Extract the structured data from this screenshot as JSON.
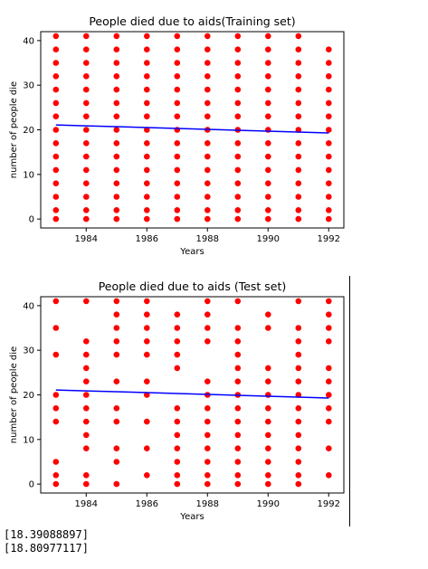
{
  "chart_data": [
    {
      "type": "scatter",
      "title": "People died due to aids(Training set)",
      "xlabel": "Years",
      "ylabel": "number of people die",
      "xlim": [
        1982.5,
        1992.5
      ],
      "ylim": [
        -2,
        42
      ],
      "xticks": [
        1984,
        1986,
        1988,
        1990,
        1992
      ],
      "yticks": [
        0,
        10,
        20,
        30,
        40
      ],
      "grid": false,
      "scatter_color": "#ff0000",
      "line_color": "#0000ff",
      "series": [
        {
          "points": [
            [
              1983,
              0
            ],
            [
              1983,
              2
            ],
            [
              1983,
              5
            ],
            [
              1983,
              8
            ],
            [
              1983,
              11
            ],
            [
              1983,
              14
            ],
            [
              1983,
              17
            ],
            [
              1983,
              20
            ],
            [
              1983,
              23
            ],
            [
              1983,
              26
            ],
            [
              1983,
              29
            ],
            [
              1983,
              32
            ],
            [
              1983,
              35
            ],
            [
              1983,
              38
            ],
            [
              1983,
              41
            ],
            [
              1984,
              0
            ],
            [
              1984,
              2
            ],
            [
              1984,
              5
            ],
            [
              1984,
              8
            ],
            [
              1984,
              11
            ],
            [
              1984,
              14
            ],
            [
              1984,
              17
            ],
            [
              1984,
              20
            ],
            [
              1984,
              23
            ],
            [
              1984,
              26
            ],
            [
              1984,
              29
            ],
            [
              1984,
              32
            ],
            [
              1984,
              35
            ],
            [
              1984,
              38
            ],
            [
              1984,
              41
            ],
            [
              1985,
              0
            ],
            [
              1985,
              2
            ],
            [
              1985,
              5
            ],
            [
              1985,
              8
            ],
            [
              1985,
              11
            ],
            [
              1985,
              14
            ],
            [
              1985,
              17
            ],
            [
              1985,
              20
            ],
            [
              1985,
              23
            ],
            [
              1985,
              26
            ],
            [
              1985,
              29
            ],
            [
              1985,
              32
            ],
            [
              1985,
              35
            ],
            [
              1985,
              38
            ],
            [
              1985,
              41
            ],
            [
              1986,
              0
            ],
            [
              1986,
              2
            ],
            [
              1986,
              5
            ],
            [
              1986,
              8
            ],
            [
              1986,
              11
            ],
            [
              1986,
              14
            ],
            [
              1986,
              17
            ],
            [
              1986,
              20
            ],
            [
              1986,
              23
            ],
            [
              1986,
              26
            ],
            [
              1986,
              29
            ],
            [
              1986,
              32
            ],
            [
              1986,
              35
            ],
            [
              1986,
              38
            ],
            [
              1986,
              41
            ],
            [
              1987,
              0
            ],
            [
              1987,
              2
            ],
            [
              1987,
              5
            ],
            [
              1987,
              8
            ],
            [
              1987,
              11
            ],
            [
              1987,
              14
            ],
            [
              1987,
              17
            ],
            [
              1987,
              20
            ],
            [
              1987,
              23
            ],
            [
              1987,
              26
            ],
            [
              1987,
              29
            ],
            [
              1987,
              32
            ],
            [
              1987,
              35
            ],
            [
              1987,
              38
            ],
            [
              1987,
              41
            ],
            [
              1988,
              0
            ],
            [
              1988,
              2
            ],
            [
              1988,
              5
            ],
            [
              1988,
              8
            ],
            [
              1988,
              11
            ],
            [
              1988,
              14
            ],
            [
              1988,
              17
            ],
            [
              1988,
              20
            ],
            [
              1988,
              23
            ],
            [
              1988,
              26
            ],
            [
              1988,
              29
            ],
            [
              1988,
              32
            ],
            [
              1988,
              35
            ],
            [
              1988,
              38
            ],
            [
              1988,
              41
            ],
            [
              1989,
              0
            ],
            [
              1989,
              2
            ],
            [
              1989,
              5
            ],
            [
              1989,
              8
            ],
            [
              1989,
              11
            ],
            [
              1989,
              14
            ],
            [
              1989,
              17
            ],
            [
              1989,
              20
            ],
            [
              1989,
              23
            ],
            [
              1989,
              26
            ],
            [
              1989,
              29
            ],
            [
              1989,
              32
            ],
            [
              1989,
              35
            ],
            [
              1989,
              38
            ],
            [
              1989,
              41
            ],
            [
              1990,
              0
            ],
            [
              1990,
              2
            ],
            [
              1990,
              5
            ],
            [
              1990,
              8
            ],
            [
              1990,
              11
            ],
            [
              1990,
              14
            ],
            [
              1990,
              17
            ],
            [
              1990,
              20
            ],
            [
              1990,
              23
            ],
            [
              1990,
              26
            ],
            [
              1990,
              29
            ],
            [
              1990,
              32
            ],
            [
              1990,
              35
            ],
            [
              1990,
              38
            ],
            [
              1990,
              41
            ],
            [
              1991,
              0
            ],
            [
              1991,
              2
            ],
            [
              1991,
              5
            ],
            [
              1991,
              8
            ],
            [
              1991,
              11
            ],
            [
              1991,
              14
            ],
            [
              1991,
              17
            ],
            [
              1991,
              20
            ],
            [
              1991,
              23
            ],
            [
              1991,
              26
            ],
            [
              1991,
              29
            ],
            [
              1991,
              32
            ],
            [
              1991,
              35
            ],
            [
              1991,
              38
            ],
            [
              1991,
              41
            ],
            [
              1992,
              0
            ],
            [
              1992,
              2
            ],
            [
              1992,
              5
            ],
            [
              1992,
              8
            ],
            [
              1992,
              11
            ],
            [
              1992,
              14
            ],
            [
              1992,
              17
            ],
            [
              1992,
              20
            ],
            [
              1992,
              23
            ],
            [
              1992,
              26
            ],
            [
              1992,
              29
            ],
            [
              1992,
              32
            ],
            [
              1992,
              35
            ],
            [
              1992,
              38
            ]
          ]
        },
        {
          "type": "line",
          "points": [
            [
              1983,
              21.1
            ],
            [
              1984,
              20.9
            ],
            [
              1985,
              20.7
            ],
            [
              1992,
              19.3
            ]
          ]
        }
      ]
    },
    {
      "type": "scatter",
      "title": "People died due to aids (Test set)",
      "xlabel": "Years",
      "ylabel": "number of people die",
      "xlim": [
        1982.5,
        1992.5
      ],
      "ylim": [
        -2,
        42
      ],
      "xticks": [
        1984,
        1986,
        1988,
        1990,
        1992
      ],
      "yticks": [
        0,
        10,
        20,
        30,
        40
      ],
      "grid": false,
      "scatter_color": "#ff0000",
      "line_color": "#0000ff",
      "series": [
        {
          "points": [
            [
              1983,
              0
            ],
            [
              1983,
              2
            ],
            [
              1983,
              5
            ],
            [
              1983,
              14
            ],
            [
              1983,
              17
            ],
            [
              1983,
              20
            ],
            [
              1983,
              29
            ],
            [
              1983,
              35
            ],
            [
              1983,
              41
            ],
            [
              1984,
              0
            ],
            [
              1984,
              2
            ],
            [
              1984,
              8
            ],
            [
              1984,
              11
            ],
            [
              1984,
              14
            ],
            [
              1984,
              17
            ],
            [
              1984,
              20
            ],
            [
              1984,
              23
            ],
            [
              1984,
              26
            ],
            [
              1984,
              29
            ],
            [
              1984,
              32
            ],
            [
              1984,
              41
            ],
            [
              1985,
              0
            ],
            [
              1985,
              5
            ],
            [
              1985,
              8
            ],
            [
              1985,
              14
            ],
            [
              1985,
              17
            ],
            [
              1985,
              23
            ],
            [
              1985,
              29
            ],
            [
              1985,
              32
            ],
            [
              1985,
              35
            ],
            [
              1985,
              38
            ],
            [
              1985,
              41
            ],
            [
              1986,
              2
            ],
            [
              1986,
              8
            ],
            [
              1986,
              14
            ],
            [
              1986,
              20
            ],
            [
              1986,
              23
            ],
            [
              1986,
              29
            ],
            [
              1986,
              32
            ],
            [
              1986,
              35
            ],
            [
              1986,
              38
            ],
            [
              1986,
              41
            ],
            [
              1987,
              0
            ],
            [
              1987,
              2
            ],
            [
              1987,
              5
            ],
            [
              1987,
              8
            ],
            [
              1987,
              11
            ],
            [
              1987,
              14
            ],
            [
              1987,
              17
            ],
            [
              1987,
              26
            ],
            [
              1987,
              29
            ],
            [
              1987,
              32
            ],
            [
              1987,
              35
            ],
            [
              1987,
              38
            ],
            [
              1988,
              0
            ],
            [
              1988,
              2
            ],
            [
              1988,
              5
            ],
            [
              1988,
              8
            ],
            [
              1988,
              11
            ],
            [
              1988,
              14
            ],
            [
              1988,
              17
            ],
            [
              1988,
              20
            ],
            [
              1988,
              23
            ],
            [
              1988,
              32
            ],
            [
              1988,
              35
            ],
            [
              1988,
              38
            ],
            [
              1988,
              41
            ],
            [
              1989,
              0
            ],
            [
              1989,
              2
            ],
            [
              1989,
              5
            ],
            [
              1989,
              8
            ],
            [
              1989,
              11
            ],
            [
              1989,
              14
            ],
            [
              1989,
              17
            ],
            [
              1989,
              20
            ],
            [
              1989,
              23
            ],
            [
              1989,
              26
            ],
            [
              1989,
              29
            ],
            [
              1989,
              32
            ],
            [
              1989,
              35
            ],
            [
              1989,
              41
            ],
            [
              1990,
              0
            ],
            [
              1990,
              2
            ],
            [
              1990,
              5
            ],
            [
              1990,
              8
            ],
            [
              1990,
              11
            ],
            [
              1990,
              14
            ],
            [
              1990,
              17
            ],
            [
              1990,
              20
            ],
            [
              1990,
              23
            ],
            [
              1990,
              26
            ],
            [
              1990,
              35
            ],
            [
              1990,
              38
            ],
            [
              1991,
              0
            ],
            [
              1991,
              2
            ],
            [
              1991,
              5
            ],
            [
              1991,
              8
            ],
            [
              1991,
              11
            ],
            [
              1991,
              14
            ],
            [
              1991,
              17
            ],
            [
              1991,
              20
            ],
            [
              1991,
              23
            ],
            [
              1991,
              26
            ],
            [
              1991,
              29
            ],
            [
              1991,
              32
            ],
            [
              1991,
              35
            ],
            [
              1991,
              41
            ],
            [
              1992,
              2
            ],
            [
              1992,
              8
            ],
            [
              1992,
              14
            ],
            [
              1992,
              17
            ],
            [
              1992,
              20
            ],
            [
              1992,
              23
            ],
            [
              1992,
              26
            ],
            [
              1992,
              32
            ],
            [
              1992,
              35
            ],
            [
              1992,
              38
            ],
            [
              1992,
              41
            ]
          ]
        },
        {
          "type": "line",
          "points": [
            [
              1983,
              21.1
            ],
            [
              1984,
              20.9
            ],
            [
              1985,
              20.7
            ],
            [
              1992,
              19.3
            ]
          ]
        }
      ]
    }
  ],
  "outputs": [
    "[18.39088897]",
    "[18.80977117]"
  ]
}
